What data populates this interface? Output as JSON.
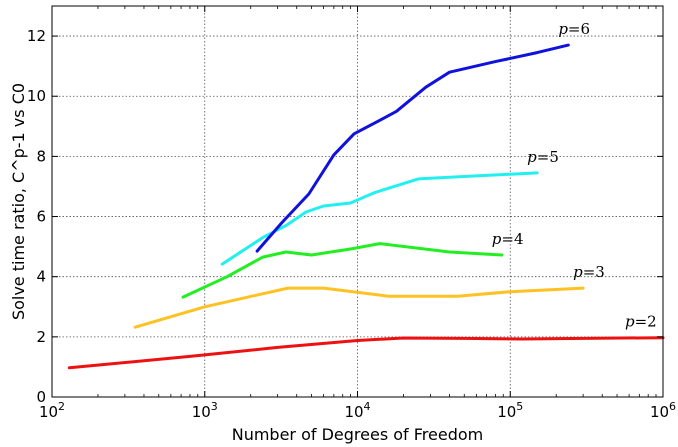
{
  "chart_data": {
    "type": "line",
    "title": "",
    "xlabel": "Number of Degrees of Freedom",
    "ylabel": "Solve time ratio, C^p-1 vs C0",
    "xscale": "log",
    "xlim": [
      100,
      1000000
    ],
    "ylim": [
      0,
      13
    ],
    "grid": true,
    "x_ticks": [
      {
        "value": 100,
        "base": "10",
        "exp": "2"
      },
      {
        "value": 1000,
        "base": "10",
        "exp": "3"
      },
      {
        "value": 10000,
        "base": "10",
        "exp": "4"
      },
      {
        "value": 100000,
        "base": "10",
        "exp": "5"
      },
      {
        "value": 1000000,
        "base": "10",
        "exp": "6"
      }
    ],
    "y_ticks": [
      0,
      2,
      4,
      6,
      8,
      10,
      12
    ],
    "series": [
      {
        "name": "p=2",
        "label_parts": [
          "p",
          "=2"
        ],
        "color": "#ee1111",
        "points": [
          [
            130,
            0.97
          ],
          [
            800,
            1.35
          ],
          [
            3000,
            1.65
          ],
          [
            10000,
            1.88
          ],
          [
            20000,
            1.96
          ],
          [
            50000,
            1.95
          ],
          [
            120000,
            1.93
          ],
          [
            300000,
            1.95
          ],
          [
            1000000,
            1.97
          ]
        ]
      },
      {
        "name": "p=3",
        "label_parts": [
          "p",
          "=3"
        ],
        "color": "#ffc222",
        "points": [
          [
            350,
            2.32
          ],
          [
            1000,
            3.0
          ],
          [
            3500,
            3.62
          ],
          [
            6000,
            3.62
          ],
          [
            16000,
            3.35
          ],
          [
            45000,
            3.35
          ],
          [
            100000,
            3.5
          ],
          [
            300000,
            3.62
          ]
        ]
      },
      {
        "name": "p=4",
        "label_parts": [
          "p",
          "=4"
        ],
        "color": "#22ee22",
        "points": [
          [
            720,
            3.32
          ],
          [
            1400,
            4.0
          ],
          [
            2400,
            4.65
          ],
          [
            3400,
            4.82
          ],
          [
            5000,
            4.72
          ],
          [
            9000,
            4.92
          ],
          [
            14000,
            5.1
          ],
          [
            40000,
            4.82
          ],
          [
            88000,
            4.72
          ]
        ]
      },
      {
        "name": "p=5",
        "label_parts": [
          "p",
          "=5"
        ],
        "color": "#22f0f0",
        "points": [
          [
            1300,
            4.42
          ],
          [
            2400,
            5.3
          ],
          [
            3400,
            5.7
          ],
          [
            4600,
            6.15
          ],
          [
            6000,
            6.35
          ],
          [
            9000,
            6.45
          ],
          [
            13000,
            6.8
          ],
          [
            25000,
            7.25
          ],
          [
            60000,
            7.35
          ],
          [
            150000,
            7.45
          ]
        ]
      },
      {
        "name": "p=6",
        "label_parts": [
          "p",
          "=6"
        ],
        "color": "#1111dd",
        "points": [
          [
            2200,
            4.85
          ],
          [
            3200,
            5.8
          ],
          [
            4800,
            6.75
          ],
          [
            7000,
            8.05
          ],
          [
            9500,
            8.75
          ],
          [
            14000,
            9.2
          ],
          [
            18000,
            9.5
          ],
          [
            28000,
            10.3
          ],
          [
            40000,
            10.8
          ],
          [
            80000,
            11.15
          ],
          [
            150000,
            11.45
          ],
          [
            240000,
            11.7
          ]
        ]
      }
    ]
  }
}
